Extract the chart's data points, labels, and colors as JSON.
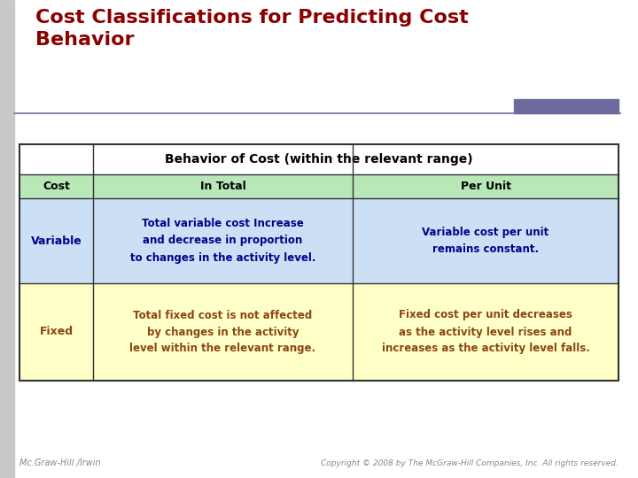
{
  "title": "Cost Classifications for Predicting Cost\nBehavior",
  "title_color": "#8B0000",
  "title_fontsize": 16,
  "slide_bg": "#ffffff",
  "accent_bar_color": "#6B6BA0",
  "header_row_text": "Behavior of Cost (within the relevant range)",
  "col_header_bg": "#b8e8b8",
  "col_headers": [
    "Cost",
    "In Total",
    "Per Unit"
  ],
  "variable_row_bg": "#cce0f5",
  "variable_label": "Variable",
  "variable_label_color": "#00008B",
  "variable_in_total": "Total variable cost Increase\nand decrease in proportion\nto changes in the activity level.",
  "variable_per_unit": "Variable cost per unit\nremains constant.",
  "variable_text_color": "#00008B",
  "fixed_row_bg": "#ffffc8",
  "fixed_label": "Fixed",
  "fixed_label_color": "#8B4513",
  "fixed_in_total": "Total fixed cost is not affected\nby changes in the activity\nlevel within the relevant range.",
  "fixed_per_unit": "Fixed cost per unit decreases\nas the activity level rises and\nincreases as the activity level falls.",
  "fixed_text_color": "#8B4513",
  "footer_left": "Mc.Graw-Hill /Irwin",
  "footer_right": "Copyright © 2008 by The McGraw-Hill Companies, Inc. All rights reserved.",
  "footer_color": "#888888",
  "line_color": "#8888aa",
  "border_color": "#333333",
  "left_stripe_color": "#c8c8c8"
}
